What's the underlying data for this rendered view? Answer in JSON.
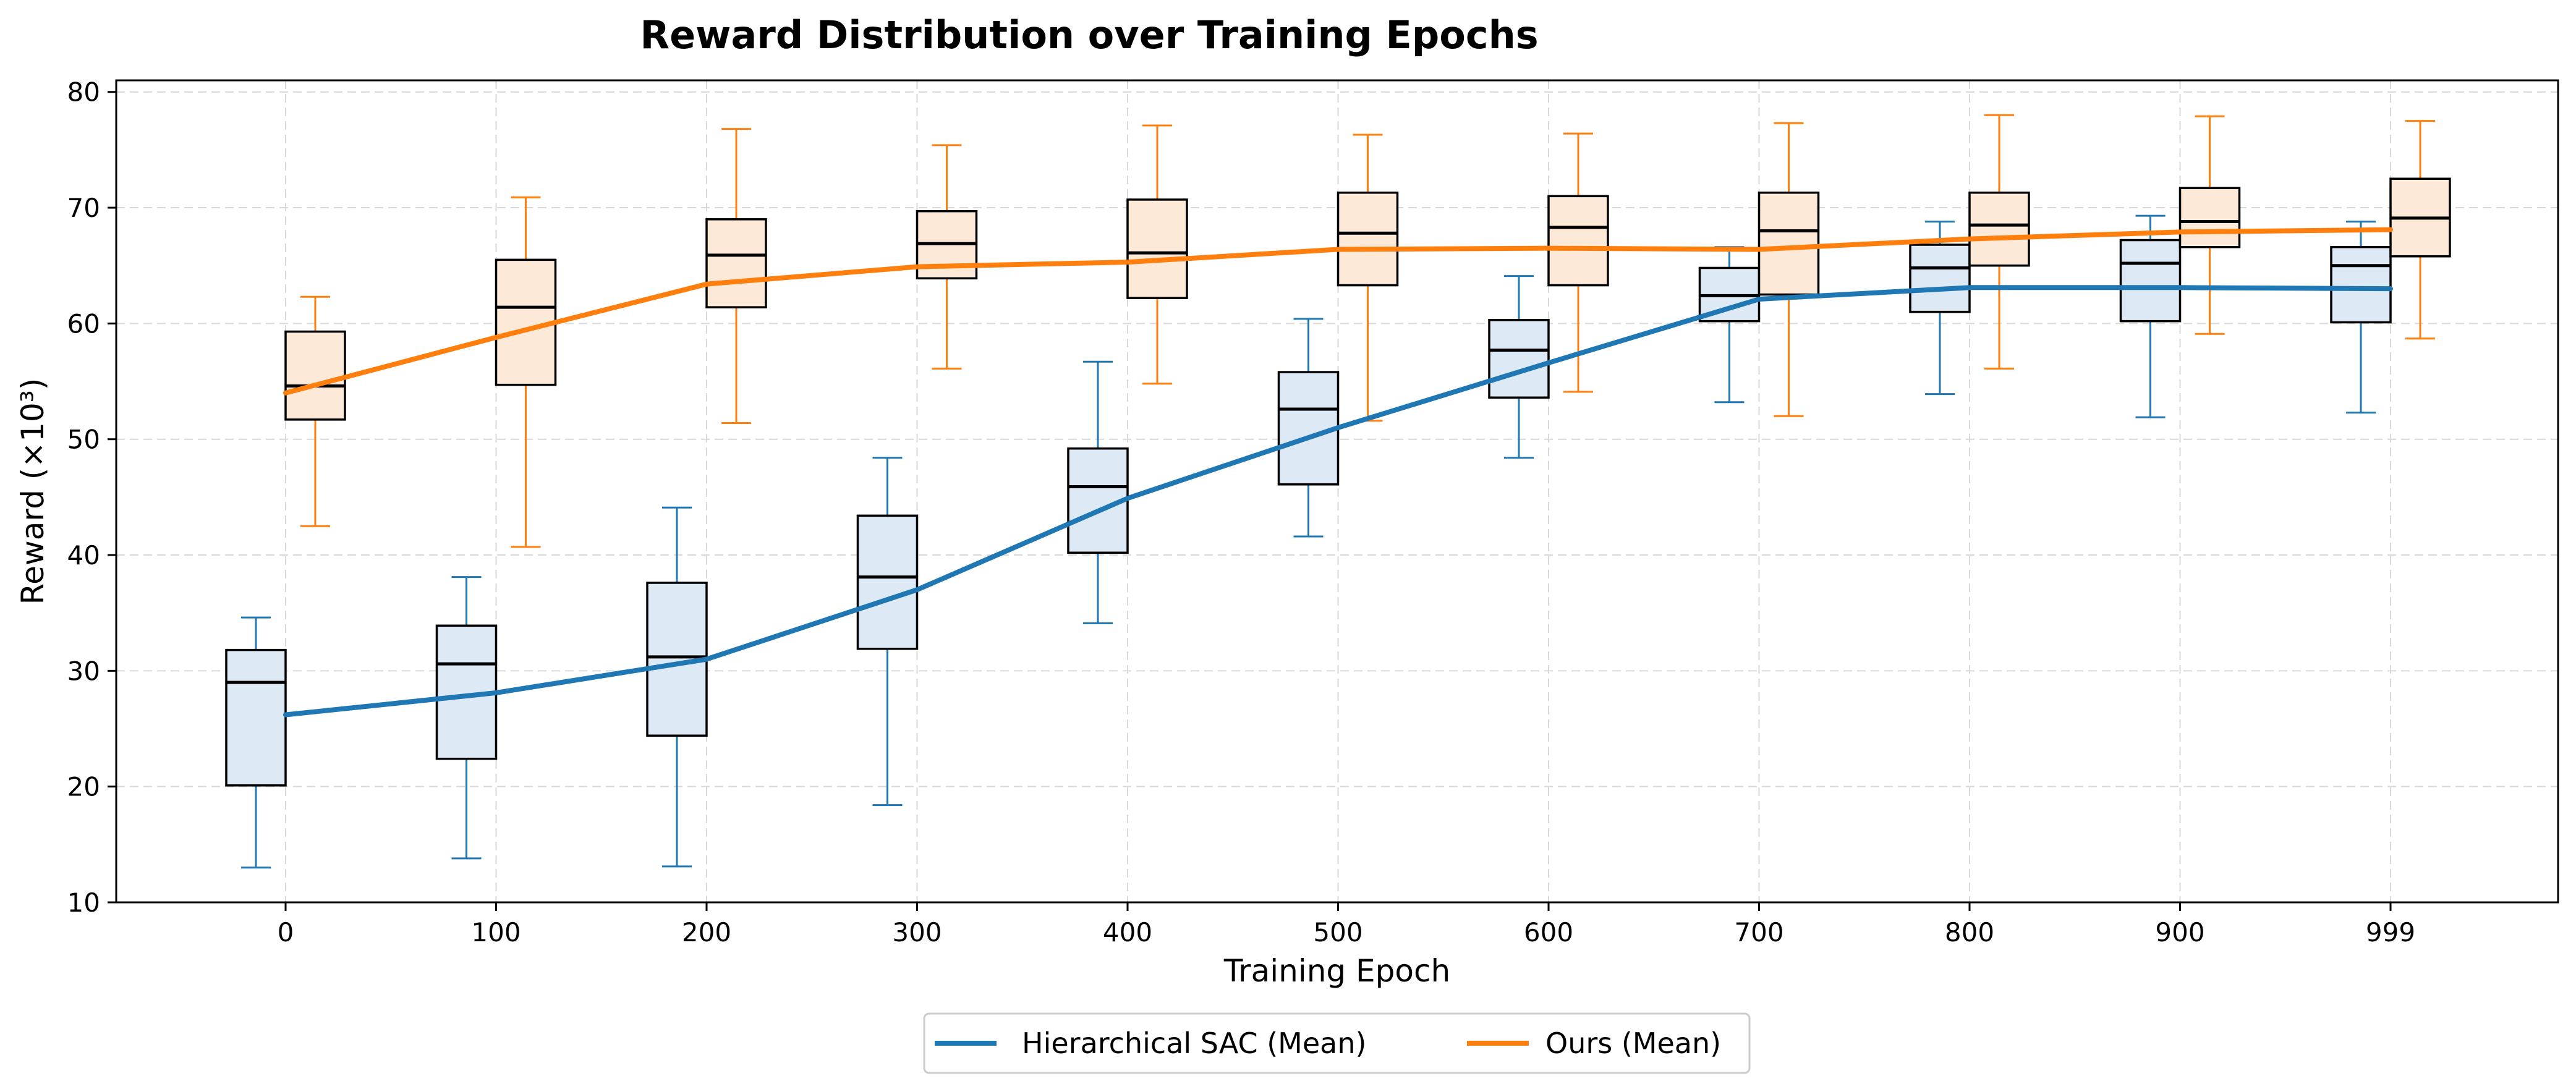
{
  "chart_data": {
    "type": "box",
    "title": "Reward Distribution over Training Epochs",
    "xlabel": "Training Epoch",
    "ylabel": "Reward (×10³)",
    "categories": [
      "0",
      "100",
      "200",
      "300",
      "400",
      "500",
      "600",
      "700",
      "800",
      "900",
      "999"
    ],
    "ylim": [
      10,
      81
    ],
    "yticks": [
      10,
      20,
      30,
      40,
      50,
      60,
      70,
      80
    ],
    "grid": true,
    "legend_position": "bottom-center",
    "series": [
      {
        "name": "Hierarchical SAC",
        "legend_label": "Hierarchical SAC (Mean)",
        "color": "#1f77b4",
        "fill": "#dde9f4",
        "boxes": [
          {
            "min": 13.0,
            "q1": 20.1,
            "median": 29.0,
            "q3": 31.8,
            "max": 34.6
          },
          {
            "min": 13.8,
            "q1": 22.4,
            "median": 30.6,
            "q3": 33.9,
            "max": 38.1
          },
          {
            "min": 13.1,
            "q1": 24.4,
            "median": 31.2,
            "q3": 37.6,
            "max": 44.1
          },
          {
            "min": 18.4,
            "q1": 31.9,
            "median": 38.1,
            "q3": 43.4,
            "max": 48.4
          },
          {
            "min": 34.1,
            "q1": 40.2,
            "median": 45.9,
            "q3": 49.2,
            "max": 56.7
          },
          {
            "min": 41.6,
            "q1": 46.1,
            "median": 52.6,
            "q3": 55.8,
            "max": 60.4
          },
          {
            "min": 48.4,
            "q1": 53.6,
            "median": 57.7,
            "q3": 60.3,
            "max": 64.1
          },
          {
            "min": 53.2,
            "q1": 60.2,
            "median": 62.4,
            "q3": 64.8,
            "max": 66.6
          },
          {
            "min": 53.9,
            "q1": 61.0,
            "median": 64.8,
            "q3": 66.8,
            "max": 68.8
          },
          {
            "min": 51.9,
            "q1": 60.2,
            "median": 65.2,
            "q3": 67.2,
            "max": 69.3
          },
          {
            "min": 52.3,
            "q1": 60.1,
            "median": 65.0,
            "q3": 66.6,
            "max": 68.8
          }
        ],
        "means": [
          26.2,
          28.1,
          31.0,
          37.0,
          44.9,
          51.0,
          56.6,
          62.1,
          63.1,
          63.1,
          63.0
        ]
      },
      {
        "name": "Ours",
        "legend_label": "Ours (Mean)",
        "color": "#ff7f0e",
        "fill": "#fde9d8",
        "boxes": [
          {
            "min": 42.5,
            "q1": 51.7,
            "median": 54.6,
            "q3": 59.3,
            "max": 62.3
          },
          {
            "min": 40.7,
            "q1": 54.7,
            "median": 61.4,
            "q3": 65.5,
            "max": 70.9
          },
          {
            "min": 51.4,
            "q1": 61.4,
            "median": 65.9,
            "q3": 69.0,
            "max": 76.8
          },
          {
            "min": 56.1,
            "q1": 63.9,
            "median": 66.9,
            "q3": 69.7,
            "max": 75.4
          },
          {
            "min": 54.8,
            "q1": 62.2,
            "median": 66.1,
            "q3": 70.7,
            "max": 77.1
          },
          {
            "min": 51.6,
            "q1": 63.3,
            "median": 67.8,
            "q3": 71.3,
            "max": 76.3
          },
          {
            "min": 54.1,
            "q1": 63.3,
            "median": 68.3,
            "q3": 71.0,
            "max": 76.4
          },
          {
            "min": 52.0,
            "q1": 62.5,
            "median": 68.0,
            "q3": 71.3,
            "max": 77.3
          },
          {
            "min": 56.1,
            "q1": 65.0,
            "median": 68.5,
            "q3": 71.3,
            "max": 78.0
          },
          {
            "min": 59.1,
            "q1": 66.6,
            "median": 68.8,
            "q3": 71.7,
            "max": 77.9
          },
          {
            "min": 58.7,
            "q1": 65.8,
            "median": 69.1,
            "q3": 72.5,
            "max": 77.5
          }
        ],
        "means": [
          54.0,
          58.8,
          63.4,
          64.9,
          65.3,
          66.4,
          66.5,
          66.4,
          67.3,
          67.9,
          68.1
        ]
      }
    ]
  }
}
